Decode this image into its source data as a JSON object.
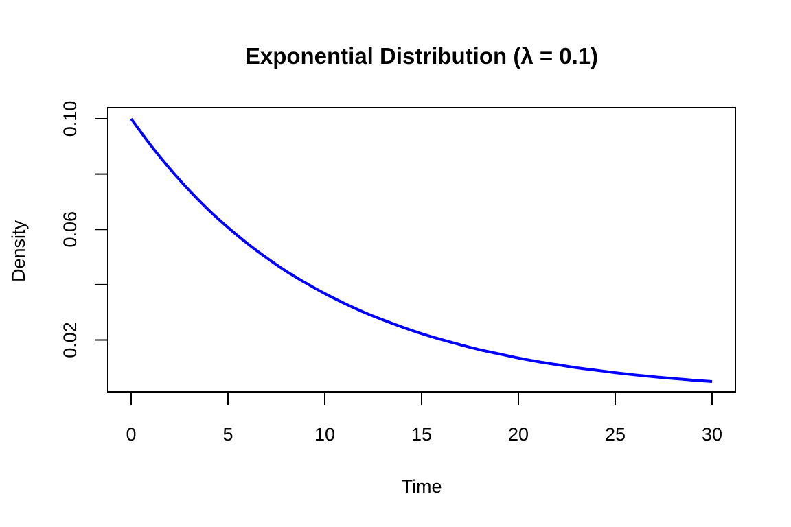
{
  "chart_data": {
    "type": "line",
    "title": "Exponential Distribution (λ = 0.1)",
    "xlabel": "Time",
    "ylabel": "Density",
    "xlim": [
      0,
      30
    ],
    "ylim": [
      0.005,
      0.1
    ],
    "x_ticks": [
      {
        "value": 0,
        "label": "0"
      },
      {
        "value": 5,
        "label": "5"
      },
      {
        "value": 10,
        "label": "10"
      },
      {
        "value": 15,
        "label": "15"
      },
      {
        "value": 20,
        "label": "20"
      },
      {
        "value": 25,
        "label": "25"
      },
      {
        "value": 30,
        "label": "30"
      }
    ],
    "y_ticks": [
      {
        "value": 0.02,
        "label": "0.02"
      },
      {
        "value": 0.04,
        "label": ""
      },
      {
        "value": 0.06,
        "label": "0.06"
      },
      {
        "value": 0.08,
        "label": ""
      },
      {
        "value": 0.1,
        "label": "0.10"
      }
    ],
    "grid": false,
    "series": [
      {
        "color": "#0000ff",
        "x": [
          0,
          1,
          2,
          3,
          4,
          5,
          6,
          7,
          8,
          9,
          10,
          11,
          12,
          13,
          14,
          15,
          16,
          17,
          18,
          19,
          20,
          21,
          22,
          23,
          24,
          25,
          26,
          27,
          28,
          29,
          30
        ],
        "y": [
          0.1,
          0.0905,
          0.0819,
          0.0741,
          0.067,
          0.0607,
          0.0549,
          0.0497,
          0.0449,
          0.0407,
          0.0368,
          0.0333,
          0.0301,
          0.0273,
          0.0247,
          0.0223,
          0.0202,
          0.0183,
          0.0165,
          0.015,
          0.0135,
          0.0122,
          0.0111,
          0.01,
          0.0091,
          0.0082,
          0.0074,
          0.0067,
          0.0061,
          0.0055,
          0.005
        ]
      }
    ]
  }
}
